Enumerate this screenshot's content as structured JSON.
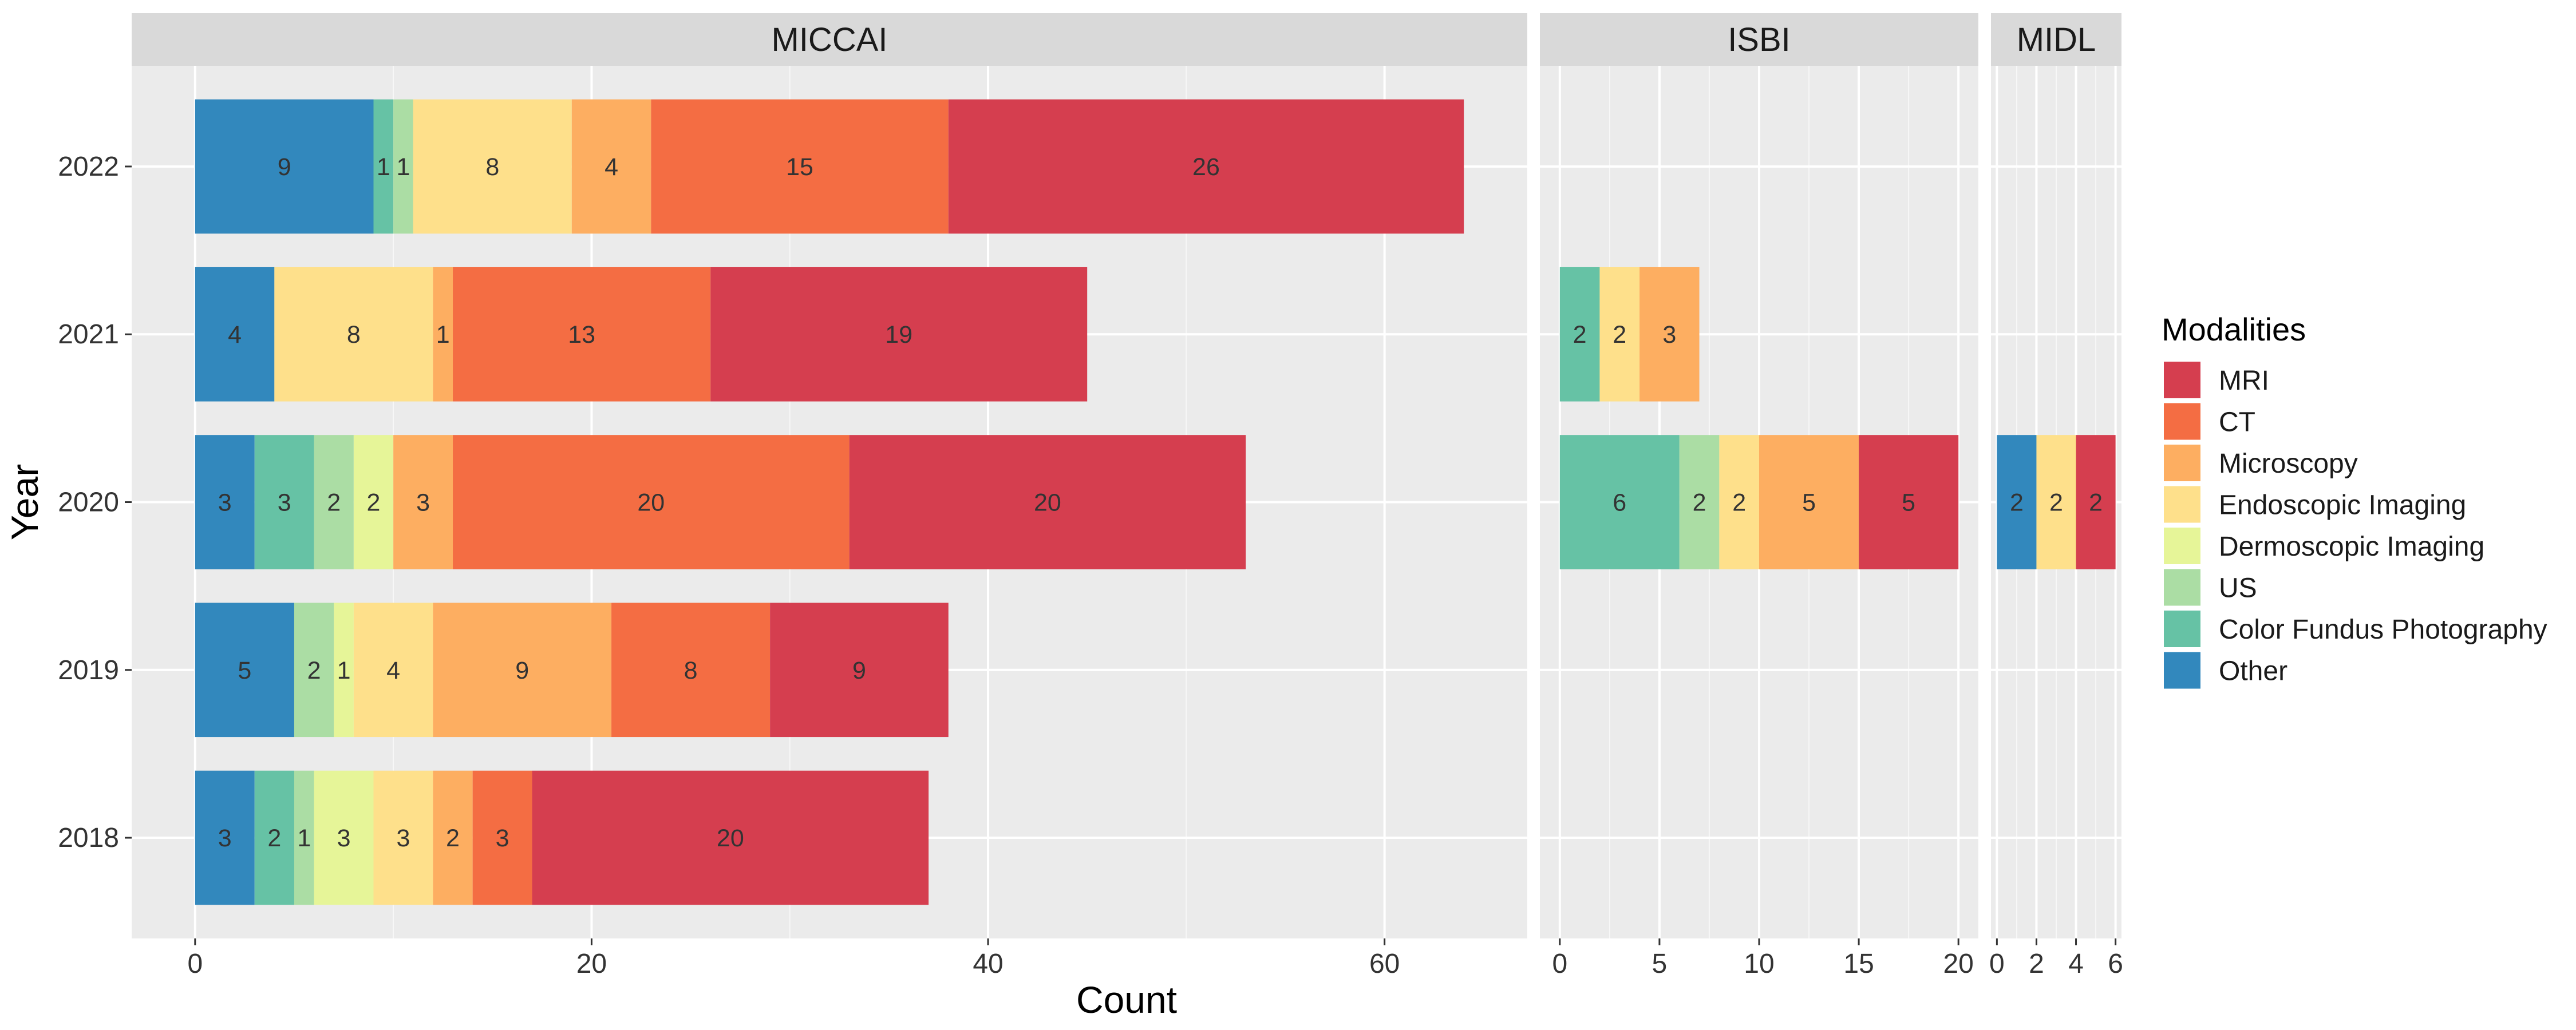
{
  "chart_data": {
    "type": "bar",
    "orientation": "horizontal",
    "stacked": true,
    "facet_by": "conference",
    "xlabel": "Count",
    "ylabel": "Year",
    "years": [
      "2018",
      "2019",
      "2020",
      "2021",
      "2022"
    ],
    "legend": {
      "title": "Modalities",
      "position": "right",
      "entries": [
        {
          "name": "MRI",
          "color": "#D53E4F"
        },
        {
          "name": "CT",
          "color": "#F46D43"
        },
        {
          "name": "Microscopy",
          "color": "#FDAE61"
        },
        {
          "name": "Endoscopic Imaging",
          "color": "#FEE08B"
        },
        {
          "name": "Dermoscopic Imaging",
          "color": "#E6F598"
        },
        {
          "name": "US",
          "color": "#ABDDA4"
        },
        {
          "name": "Color Fundus Photography",
          "color": "#66C2A5"
        },
        {
          "name": "Other",
          "color": "#3288BD"
        }
      ]
    },
    "stack_order": [
      "Other",
      "Color Fundus Photography",
      "US",
      "Dermoscopic Imaging",
      "Endoscopic Imaging",
      "Microscopy",
      "CT",
      "MRI"
    ],
    "grid": true,
    "panels": [
      {
        "name": "MICCAI",
        "xlim": [
          -3.2,
          67.2
        ],
        "xticks": [
          0,
          20,
          40,
          60
        ],
        "data": {
          "2022": {
            "Other": 9,
            "Color Fundus Photography": 1,
            "US": 1,
            "Endoscopic Imaging": 8,
            "Microscopy": 4,
            "CT": 15,
            "MRI": 26
          },
          "2021": {
            "Other": 4,
            "Endoscopic Imaging": 8,
            "Microscopy": 1,
            "CT": 13,
            "MRI": 19
          },
          "2020": {
            "Other": 3,
            "Color Fundus Photography": 3,
            "US": 2,
            "Dermoscopic Imaging": 2,
            "Microscopy": 3,
            "CT": 20,
            "MRI": 20
          },
          "2019": {
            "Other": 5,
            "US": 2,
            "Dermoscopic Imaging": 1,
            "Endoscopic Imaging": 4,
            "Microscopy": 9,
            "CT": 8,
            "MRI": 9
          },
          "2018": {
            "Other": 3,
            "Color Fundus Photography": 2,
            "US": 1,
            "Dermoscopic Imaging": 3,
            "Endoscopic Imaging": 3,
            "Microscopy": 2,
            "CT": 3,
            "MRI": 20
          }
        }
      },
      {
        "name": "ISBI",
        "xlim": [
          -1,
          21
        ],
        "xticks": [
          0,
          5,
          10,
          15,
          20
        ],
        "data": {
          "2021": {
            "Color Fundus Photography": 2,
            "Endoscopic Imaging": 2,
            "Microscopy": 3
          },
          "2020": {
            "Color Fundus Photography": 6,
            "US": 2,
            "Endoscopic Imaging": 2,
            "Microscopy": 5,
            "MRI": 5
          }
        }
      },
      {
        "name": "MIDL",
        "xlim": [
          -0.3,
          6.3
        ],
        "xticks": [
          0,
          2,
          4,
          6
        ],
        "data": {
          "2020": {
            "Other": 2,
            "Endoscopic Imaging": 2,
            "MRI": 2
          }
        }
      }
    ]
  }
}
